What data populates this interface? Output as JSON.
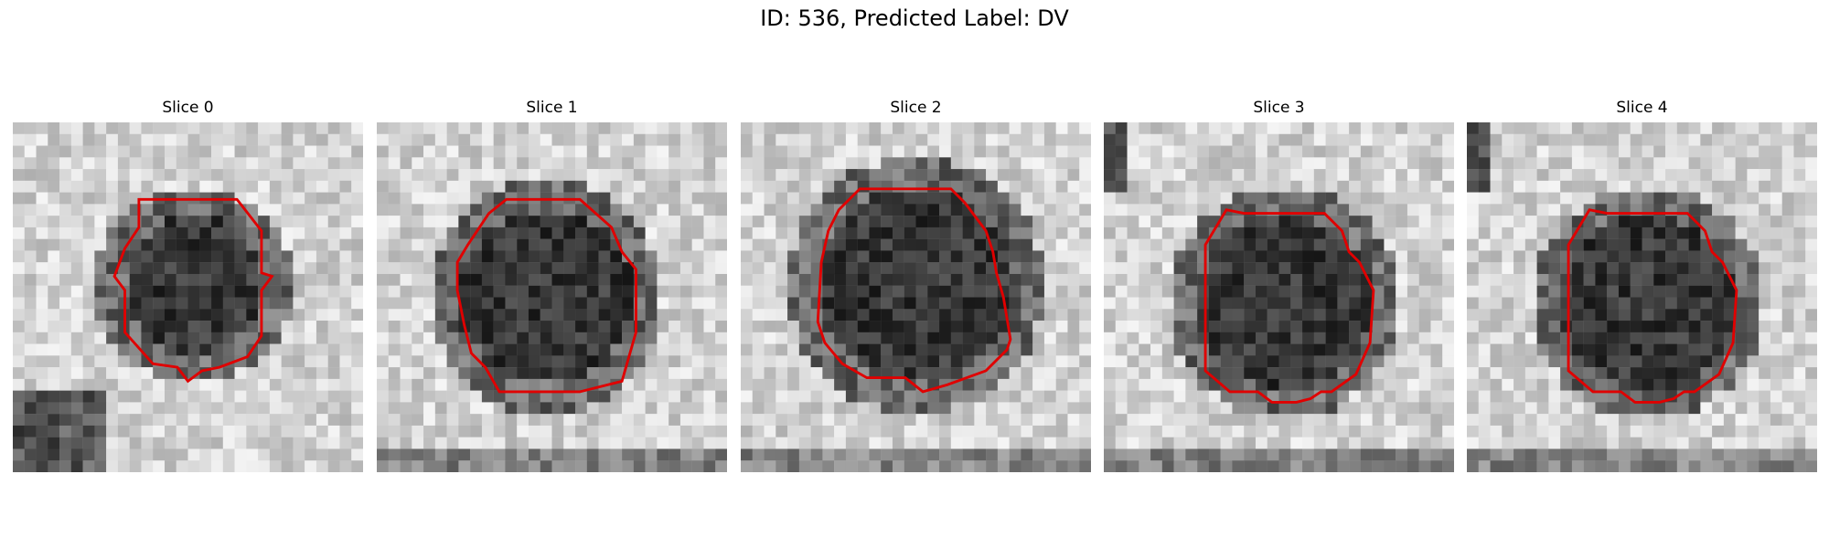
{
  "figure": {
    "title": "ID: 536, Predicted Label: DV",
    "contour_color": "#e00000",
    "colormap": "grayscale",
    "slices": [
      {
        "title": "Slice 0",
        "contour_icon": "red-contour-outline"
      },
      {
        "title": "Slice 1",
        "contour_icon": "red-contour-outline"
      },
      {
        "title": "Slice 2",
        "contour_icon": "red-contour-outline"
      },
      {
        "title": "Slice 3",
        "contour_icon": "red-contour-outline"
      },
      {
        "title": "Slice 4",
        "contour_icon": "red-contour-outline"
      }
    ]
  }
}
